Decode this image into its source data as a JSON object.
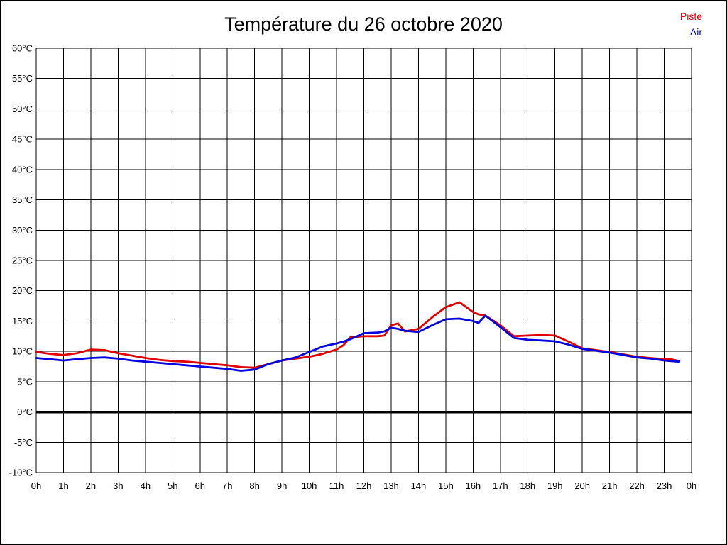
{
  "title": "Température du 26 octobre 2020",
  "legend": [
    {
      "label": "Piste",
      "color": "#e00000"
    },
    {
      "label": "Air",
      "color": "#0000e0"
    }
  ],
  "chart_data": {
    "type": "line",
    "title": "Température du 26 octobre 2020",
    "xlabel": "",
    "ylabel": "",
    "x_unit": "hour of day",
    "y_unit": "°C",
    "xlim": [
      0,
      24
    ],
    "ylim": [
      -10,
      60
    ],
    "grid": true,
    "zero_line_value": 0,
    "legend_position": "top-right",
    "x_ticks": [
      {
        "label": "0h",
        "value": 0
      },
      {
        "label": "1h",
        "value": 1
      },
      {
        "label": "2h",
        "value": 2
      },
      {
        "label": "3h",
        "value": 3
      },
      {
        "label": "4h",
        "value": 4
      },
      {
        "label": "5h",
        "value": 5
      },
      {
        "label": "6h",
        "value": 6
      },
      {
        "label": "7h",
        "value": 7
      },
      {
        "label": "8h",
        "value": 8
      },
      {
        "label": "9h",
        "value": 9
      },
      {
        "label": "10h",
        "value": 10
      },
      {
        "label": "11h",
        "value": 11
      },
      {
        "label": "12h",
        "value": 12
      },
      {
        "label": "13h",
        "value": 13
      },
      {
        "label": "14h",
        "value": 14
      },
      {
        "label": "15h",
        "value": 15
      },
      {
        "label": "16h",
        "value": 16
      },
      {
        "label": "17h",
        "value": 17
      },
      {
        "label": "18h",
        "value": 18
      },
      {
        "label": "19h",
        "value": 19
      },
      {
        "label": "20h",
        "value": 20
      },
      {
        "label": "21h",
        "value": 21
      },
      {
        "label": "22h",
        "value": 22
      },
      {
        "label": "23h",
        "value": 23
      },
      {
        "label": "0h",
        "value": 24
      }
    ],
    "y_ticks": [
      {
        "label": "60°C",
        "value": 60
      },
      {
        "label": "55°C",
        "value": 55
      },
      {
        "label": "50°C",
        "value": 50
      },
      {
        "label": "45°C",
        "value": 45
      },
      {
        "label": "40°C",
        "value": 40
      },
      {
        "label": "35°C",
        "value": 35
      },
      {
        "label": "30°C",
        "value": 30
      },
      {
        "label": "25°C",
        "value": 25
      },
      {
        "label": "20°C",
        "value": 20
      },
      {
        "label": "15°C",
        "value": 15
      },
      {
        "label": "10°C",
        "value": 10
      },
      {
        "label": "5°C",
        "value": 5
      },
      {
        "label": "0°C",
        "value": 0
      },
      {
        "label": "-5°C",
        "value": -5
      },
      {
        "label": "-10°C",
        "value": -10
      }
    ],
    "x": [
      0,
      0.5,
      1,
      1.5,
      2,
      2.5,
      3,
      3.5,
      4,
      4.5,
      5,
      5.5,
      6,
      6.5,
      7,
      7.5,
      8,
      8.5,
      9,
      9.5,
      10,
      10.5,
      11,
      11.25,
      11.5,
      12,
      12.5,
      12.75,
      13,
      13.25,
      13.5,
      14,
      14.5,
      15,
      15.25,
      15.5,
      16,
      16.2,
      16.45,
      17,
      17.5,
      18,
      18.5,
      19,
      19.5,
      20,
      20.5,
      21,
      21.5,
      22,
      22.5,
      23,
      23.25,
      23.55
    ],
    "series": [
      {
        "name": "Piste",
        "color": "#e00000",
        "values": [
          9.9,
          9.6,
          9.4,
          9.7,
          10.3,
          10.2,
          9.7,
          9.3,
          8.9,
          8.6,
          8.4,
          8.3,
          8.1,
          7.9,
          7.7,
          7.4,
          7.3,
          7.9,
          8.5,
          8.8,
          9.1,
          9.6,
          10.3,
          11.0,
          12.3,
          12.5,
          12.5,
          12.6,
          14.3,
          14.6,
          13.3,
          13.7,
          15.6,
          17.3,
          17.7,
          18.1,
          16.5,
          16.1,
          15.9,
          14.3,
          12.5,
          12.6,
          12.7,
          12.6,
          11.6,
          10.5,
          10.2,
          9.9,
          9.5,
          9.1,
          8.9,
          8.7,
          8.7,
          8.4
        ]
      },
      {
        "name": "Air",
        "color": "#0000e0",
        "values": [
          8.9,
          8.7,
          8.5,
          8.7,
          8.9,
          9.0,
          8.8,
          8.5,
          8.3,
          8.1,
          7.9,
          7.7,
          7.5,
          7.3,
          7.1,
          6.8,
          7.0,
          7.9,
          8.5,
          9.0,
          9.9,
          10.8,
          11.3,
          11.6,
          12.0,
          13.0,
          13.1,
          13.3,
          13.9,
          13.7,
          13.4,
          13.2,
          14.3,
          15.3,
          15.35,
          15.4,
          15.0,
          14.7,
          15.9,
          14.0,
          12.2,
          11.9,
          11.8,
          11.65,
          11.1,
          10.4,
          10.1,
          9.8,
          9.4,
          9.0,
          8.8,
          8.5,
          8.4,
          8.3
        ]
      }
    ]
  },
  "colors": {
    "background": "#ffffff",
    "grid": "#000000",
    "text": "#000000",
    "frame": "#000000"
  }
}
